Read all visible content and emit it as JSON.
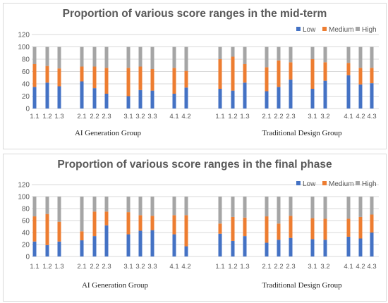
{
  "colors": {
    "low": "#4472c4",
    "medium": "#ed7d31",
    "high": "#a5a5a5",
    "grid": "#d9d9d9",
    "text": "#595959"
  },
  "chart_data": [
    {
      "type": "bar",
      "stacked": true,
      "title": "Proportion of various score ranges in the mid-term",
      "ylim": [
        0,
        120
      ],
      "yticks": [
        "0",
        "20",
        "40",
        "60",
        "80",
        "100",
        "120"
      ],
      "grid": true,
      "legend_position": "top-right",
      "legend": [
        "Low",
        "Medium",
        "High"
      ],
      "groups": [
        "AI Generation Group",
        "Traditional Design Group"
      ],
      "categories": [
        "1.1",
        "1.2",
        "1.3",
        "2.1",
        "2.2",
        "2.3",
        "3.1",
        "3.2",
        "3.3",
        "4.1",
        "4.2",
        "1.1",
        "1.2",
        "1.3",
        "2.1",
        "2.2",
        "2.3",
        "3.1",
        "3.2",
        "4.1",
        "4.2",
        "4.3"
      ],
      "category_group": [
        0,
        0,
        0,
        0,
        0,
        0,
        0,
        0,
        0,
        0,
        0,
        1,
        1,
        1,
        1,
        1,
        1,
        1,
        1,
        1,
        1,
        1
      ],
      "series": [
        {
          "name": "Low",
          "values": [
            35,
            42,
            36,
            44,
            33,
            24,
            20,
            30,
            29,
            24,
            34,
            32,
            29,
            42,
            28,
            35,
            47,
            32,
            45,
            54,
            39,
            41
          ]
        },
        {
          "name": "Medium",
          "values": [
            37,
            27,
            29,
            24,
            35,
            42,
            46,
            38,
            35,
            42,
            27,
            48,
            55,
            30,
            39,
            43,
            28,
            48,
            30,
            20,
            27,
            25
          ]
        },
        {
          "name": "High",
          "values": [
            28,
            31,
            35,
            32,
            32,
            34,
            34,
            32,
            36,
            34,
            39,
            20,
            16,
            28,
            33,
            22,
            25,
            20,
            25,
            26,
            34,
            34
          ]
        }
      ]
    },
    {
      "type": "bar",
      "stacked": true,
      "title": "Proportion of various score ranges in the final phase",
      "ylim": [
        0,
        120
      ],
      "yticks": [
        "0",
        "20",
        "40",
        "60",
        "80",
        "100",
        "120"
      ],
      "grid": true,
      "legend_position": "top-right",
      "legend": [
        "Low",
        "Medium",
        "High"
      ],
      "groups": [
        "AI Generation Group",
        "Traditional Design Group"
      ],
      "categories": [
        "1.1",
        "1.2",
        "1.3",
        "2.1",
        "2.2",
        "2.3",
        "3.1",
        "3.2",
        "3.3",
        "4.1",
        "4.2",
        "1.1",
        "1.2",
        "1.3",
        "2.1",
        "2.2",
        "2.3",
        "3.1",
        "3.2",
        "4.1",
        "4.2",
        "4.3"
      ],
      "category_group": [
        0,
        0,
        0,
        0,
        0,
        0,
        0,
        0,
        0,
        0,
        0,
        1,
        1,
        1,
        1,
        1,
        1,
        1,
        1,
        1,
        1,
        1
      ],
      "series": [
        {
          "name": "Low",
          "values": [
            25,
            19,
            25,
            27,
            34,
            52,
            37,
            43,
            44,
            37,
            17,
            38,
            26,
            34,
            23,
            28,
            31,
            29,
            28,
            33,
            30,
            40
          ]
        },
        {
          "name": "Medium",
          "values": [
            42,
            52,
            33,
            15,
            41,
            23,
            37,
            26,
            24,
            32,
            52,
            17,
            40,
            31,
            44,
            27,
            37,
            35,
            35,
            30,
            36,
            30
          ]
        },
        {
          "name": "High",
          "values": [
            33,
            29,
            42,
            58,
            25,
            25,
            26,
            31,
            32,
            31,
            31,
            45,
            34,
            35,
            33,
            45,
            32,
            36,
            37,
            37,
            34,
            30
          ]
        }
      ]
    }
  ]
}
